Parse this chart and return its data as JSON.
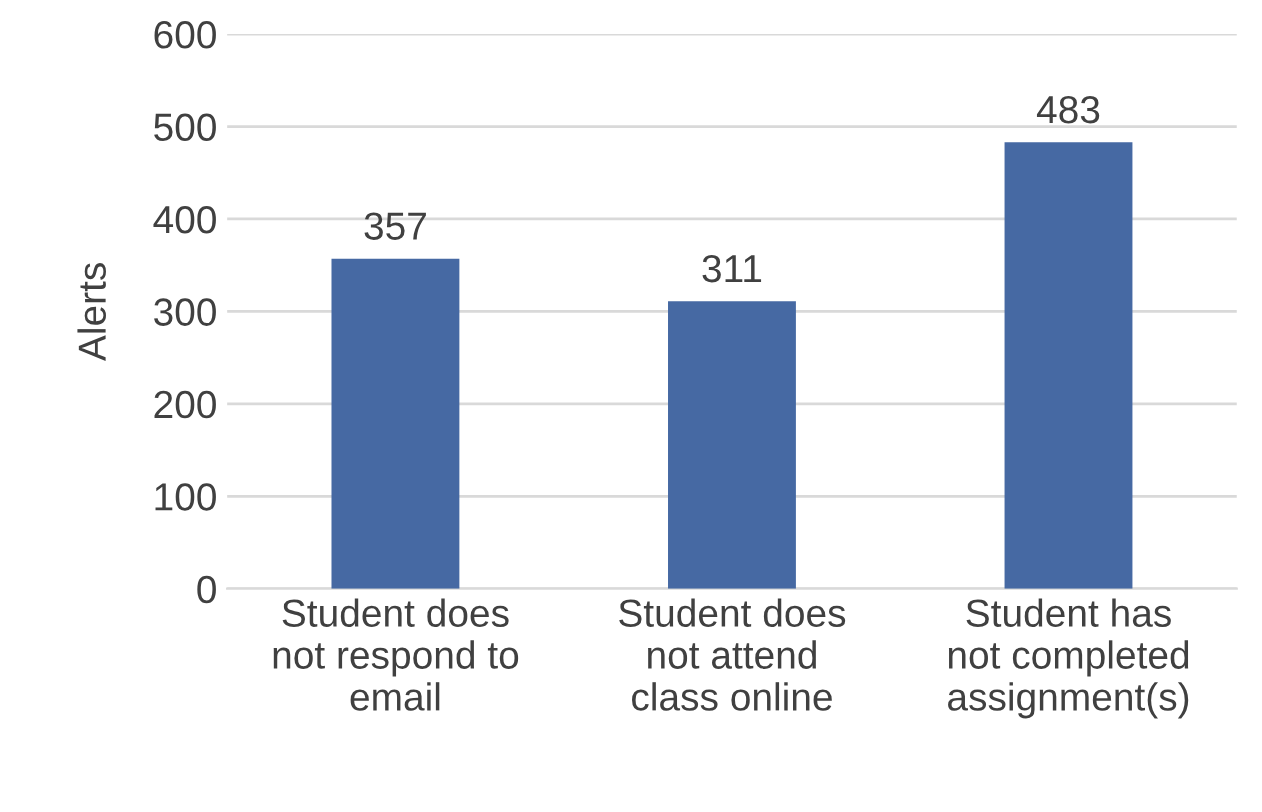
{
  "chart_data": {
    "type": "bar",
    "ylabel": "Alerts",
    "categories": [
      "Student does\nnot respond to\nemail",
      "Student does\nnot attend\nclass online",
      "Student has\nnot completed\nassignment(s)"
    ],
    "values": [
      357,
      311,
      483
    ],
    "color": "#4669a3",
    "ylim": [
      0,
      600
    ],
    "yticks": [
      0,
      100,
      200,
      300,
      400,
      500,
      600
    ],
    "grid": "y",
    "data_labels": true
  }
}
